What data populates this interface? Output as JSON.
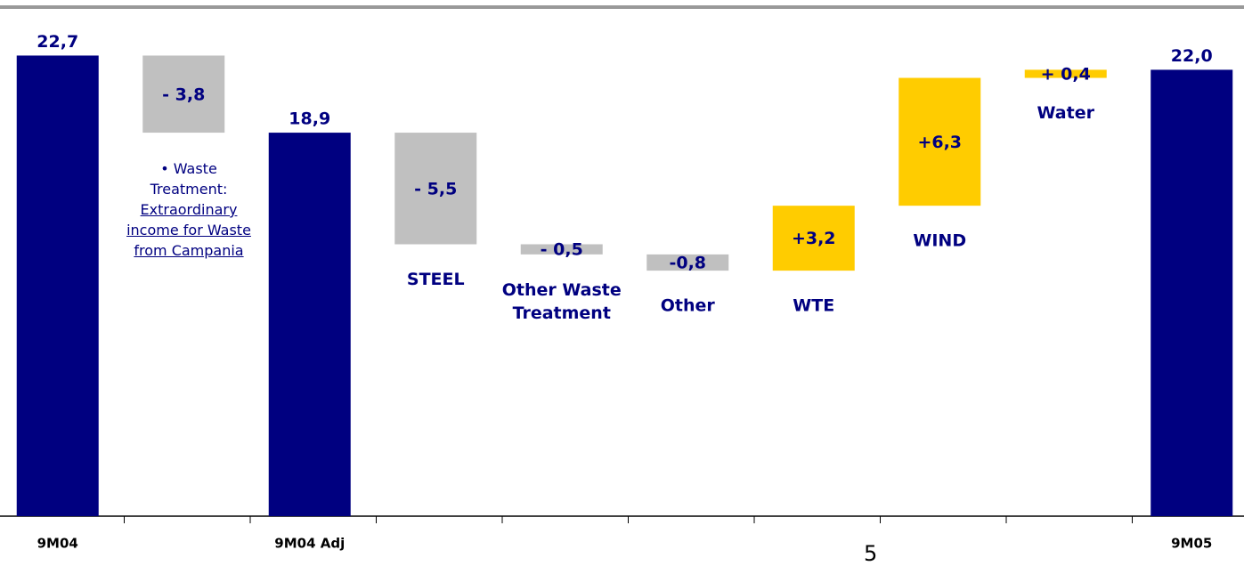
{
  "chart_data": {
    "type": "waterfall",
    "categories": [
      "9M04",
      null,
      "9M04 Adj",
      null,
      null,
      null,
      null,
      null,
      null,
      "9M05"
    ],
    "bar_labels": [
      null,
      null,
      null,
      "STEEL",
      "Other Waste Treatment",
      "Other",
      "WTE",
      "WIND",
      "Water",
      null
    ],
    "values": [
      22.7,
      -3.8,
      18.9,
      -5.5,
      -0.5,
      -0.8,
      3.2,
      6.3,
      0.4,
      22.0
    ],
    "value_labels": [
      "22,7",
      "- 3,8",
      "18,9",
      "- 5,5",
      "- 0,5",
      "-0,8",
      "+3,2",
      "+6,3",
      "+ 0,4",
      "22,0"
    ],
    "measure": [
      "total",
      "relative",
      "total",
      "relative",
      "relative",
      "relative",
      "relative",
      "relative",
      "relative",
      "total"
    ],
    "colors": [
      "#000080",
      "#c0c0c0",
      "#000080",
      "#c0c0c0",
      "#c0c0c0",
      "#c0c0c0",
      "#ffcc00",
      "#ffcc00",
      "#ffcc00",
      "#000080"
    ],
    "ylim": [
      0,
      25
    ],
    "annotation": {
      "head": "Waste Treatment:",
      "link": "Extraordinary income for Waste from Campania"
    }
  },
  "page_number": "5"
}
